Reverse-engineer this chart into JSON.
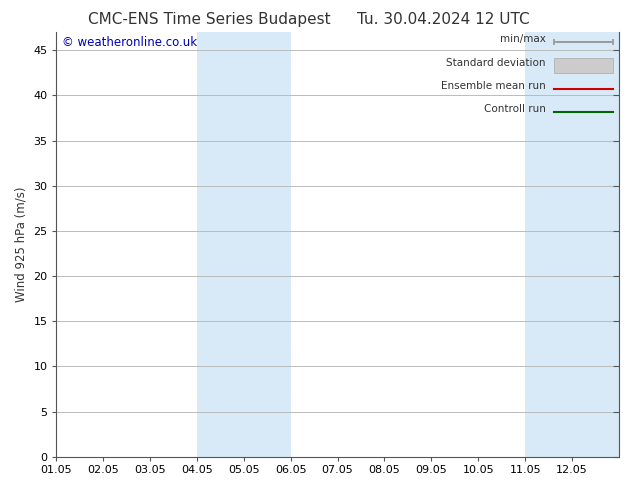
{
  "title_left": "CMC-ENS Time Series Budapest",
  "title_right": "Tu. 30.04.2024 12 UTC",
  "ylabel": "Wind 925 hPa (m/s)",
  "watermark": "© weatheronline.co.uk",
  "xlim": [
    0,
    12
  ],
  "ylim": [
    0,
    47
  ],
  "yticks": [
    0,
    5,
    10,
    15,
    20,
    25,
    30,
    35,
    40,
    45
  ],
  "xtick_labels": [
    "01.05",
    "02.05",
    "03.05",
    "04.05",
    "05.05",
    "06.05",
    "07.05",
    "08.05",
    "09.05",
    "10.05",
    "11.05",
    "12.05"
  ],
  "shaded_bands": [
    {
      "x_start": 3,
      "x_end": 5,
      "color": "#d8eaf7"
    },
    {
      "x_start": 10,
      "x_end": 12,
      "color": "#d8eaf7"
    }
  ],
  "legend_entries": [
    {
      "label": "min/max",
      "type": "minmax",
      "color": "#999999"
    },
    {
      "label": "Standard deviation",
      "type": "stdev",
      "color": "#cccccc"
    },
    {
      "label": "Ensemble mean run",
      "type": "line",
      "color": "#cc0000",
      "linewidth": 1.5
    },
    {
      "label": "Controll run",
      "type": "line",
      "color": "#006600",
      "linewidth": 1.5
    }
  ],
  "bg_color": "#ffffff",
  "plot_bg_color": "#ffffff",
  "grid_color": "#bbbbbb",
  "title_fontsize": 11,
  "watermark_color": "#0000bb",
  "watermark_fontsize": 8.5,
  "tick_label_fontsize": 8,
  "ylabel_fontsize": 8.5
}
